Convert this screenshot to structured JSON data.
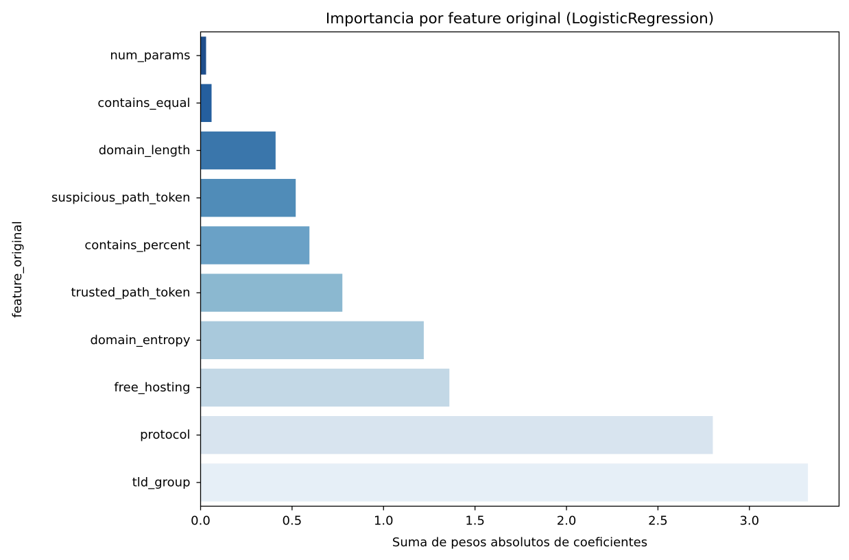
{
  "chart_data": {
    "type": "bar",
    "orientation": "horizontal",
    "title": "Importancia por feature original (LogisticRegression)",
    "xlabel": "Suma de pesos absolutos de coeficientes",
    "ylabel": "feature_original",
    "categories": [
      "num_params",
      "contains_equal",
      "domain_length",
      "suspicious_path_token",
      "contains_percent",
      "trusted_path_token",
      "domain_entropy",
      "free_hosting",
      "protocol",
      "tld_group"
    ],
    "values": [
      0.03,
      0.06,
      0.41,
      0.52,
      0.595,
      0.775,
      1.22,
      1.36,
      2.8,
      3.32
    ],
    "colors": [
      "#1f4e8c",
      "#255f9e",
      "#3a76ab",
      "#508cb8",
      "#6aa1c6",
      "#8bb8d0",
      "#a9c9dc",
      "#c3d8e6",
      "#d8e4ef",
      "#e6eff7"
    ],
    "xlim": [
      0,
      3.49
    ],
    "xticks": [
      0.0,
      0.5,
      1.0,
      1.5,
      2.0,
      2.5,
      3.0
    ],
    "xtick_labels": [
      "0.0",
      "0.5",
      "1.0",
      "1.5",
      "2.0",
      "2.5",
      "3.0"
    ],
    "grid": false,
    "legend": "none"
  }
}
